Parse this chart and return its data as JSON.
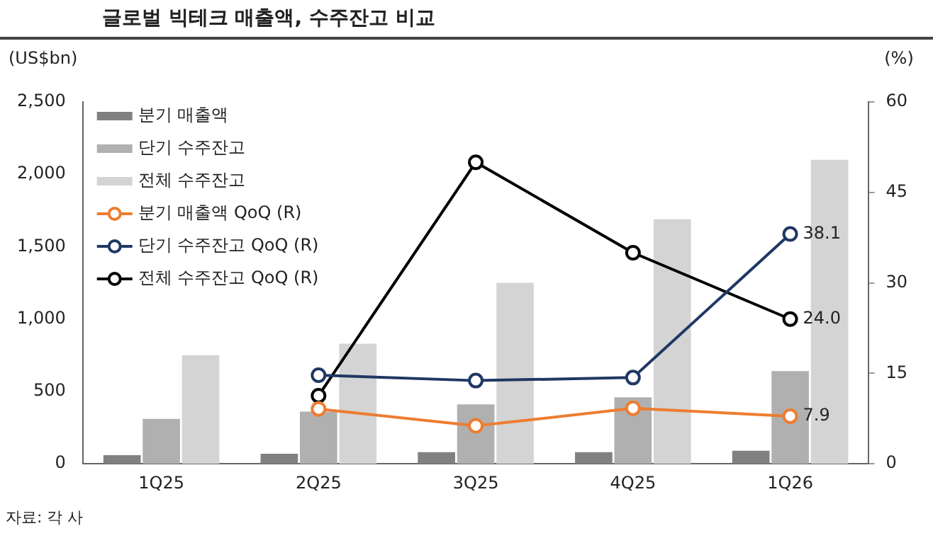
{
  "chart_data": {
    "type": "bar",
    "title": "글로벌 빅테크 매출액, 수주잔고 비교",
    "ylabel": "(US$bn)",
    "y2label": "(%)",
    "categories": [
      "1Q25",
      "2Q25",
      "3Q25",
      "4Q25",
      "1Q26"
    ],
    "series": [
      {
        "name": "분기 매출액",
        "color": "#808080",
        "values": [
          60,
          70,
          80,
          80,
          90
        ]
      },
      {
        "name": "단기 수주잔고",
        "color": "#b0b0b0",
        "values": [
          310,
          360,
          410,
          460,
          640
        ]
      },
      {
        "name": "전체 수주잔고",
        "color": "#d4d4d4",
        "values": [
          750,
          830,
          1250,
          1690,
          2100
        ]
      },
      {
        "name": "분기 매출액 QoQ (R)",
        "type": "line",
        "axis": "y2",
        "color": "#ed7d31",
        "values": [
          null,
          9.1,
          6.3,
          9.2,
          7.9
        ],
        "value_labels": [
          null,
          null,
          null,
          null,
          "7.9"
        ]
      },
      {
        "name": "단기 수주잔고 QoQ (R)",
        "type": "line",
        "axis": "y2",
        "color": "#1f3864",
        "values": [
          null,
          14.7,
          13.8,
          14.3,
          38.1
        ],
        "value_labels": [
          null,
          null,
          null,
          null,
          "38.1"
        ]
      },
      {
        "name": "전체 수주잔고 QoQ (R)",
        "type": "line",
        "axis": "y2",
        "color": "#000000",
        "values": [
          null,
          11.3,
          50,
          35,
          24.0
        ],
        "value_labels": [
          null,
          null,
          null,
          null,
          "24.0"
        ]
      }
    ],
    "ylim": [
      0,
      2500
    ],
    "yticks": [
      0,
      {
        "value": 500,
        "label": "500"
      },
      {
        "value": 1000,
        "label": "1,000"
      },
      {
        "value": 1500,
        "label": "1,500"
      },
      {
        "value": 2000,
        "label": "2,000"
      },
      {
        "value": 2500,
        "label": "2,500"
      }
    ],
    "y2lim": [
      0,
      60
    ],
    "y2ticks": [
      0,
      15,
      30,
      45,
      60
    ],
    "grid": false,
    "legend": "top left",
    "marker": "circle",
    "line_style": "solid",
    "annotations": [
      "자료: 각 사"
    ]
  }
}
